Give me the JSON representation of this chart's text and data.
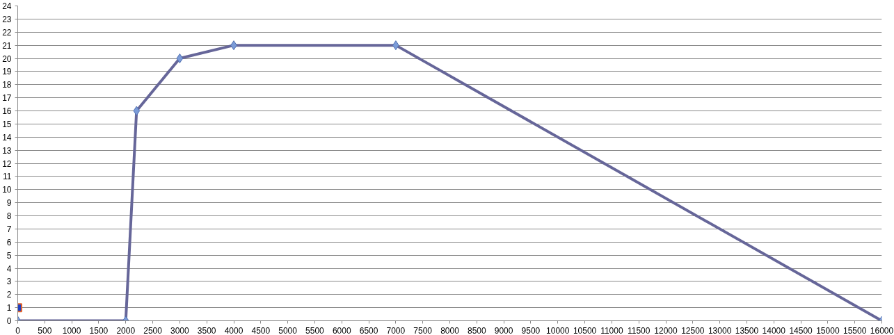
{
  "chart_data": {
    "type": "line",
    "xlim": [
      0,
      16000
    ],
    "ylim": [
      0,
      24
    ],
    "xticks": [
      0,
      500,
      1000,
      1500,
      2000,
      2500,
      3000,
      3500,
      4000,
      4500,
      5000,
      5500,
      6000,
      6500,
      7000,
      7500,
      8000,
      8500,
      9000,
      9500,
      10000,
      10500,
      11000,
      11500,
      12000,
      12500,
      13000,
      13500,
      14000,
      14500,
      15000,
      15500,
      16000
    ],
    "yticks": [
      0,
      1,
      2,
      3,
      4,
      5,
      6,
      7,
      8,
      9,
      10,
      11,
      12,
      13,
      14,
      15,
      16,
      17,
      18,
      19,
      20,
      21,
      22,
      23,
      24
    ],
    "grid": "y",
    "series": [
      {
        "color": "#666699",
        "marker": "diamond",
        "x": [
          0,
          2000,
          2200,
          3000,
          4000,
          7000,
          16000
        ],
        "values": [
          0,
          0,
          16,
          20,
          21,
          21,
          0
        ]
      },
      {
        "type": "scatter",
        "color": "#1f3fc0",
        "marker": "square",
        "x": [
          0
        ],
        "values": [
          1
        ]
      }
    ]
  }
}
